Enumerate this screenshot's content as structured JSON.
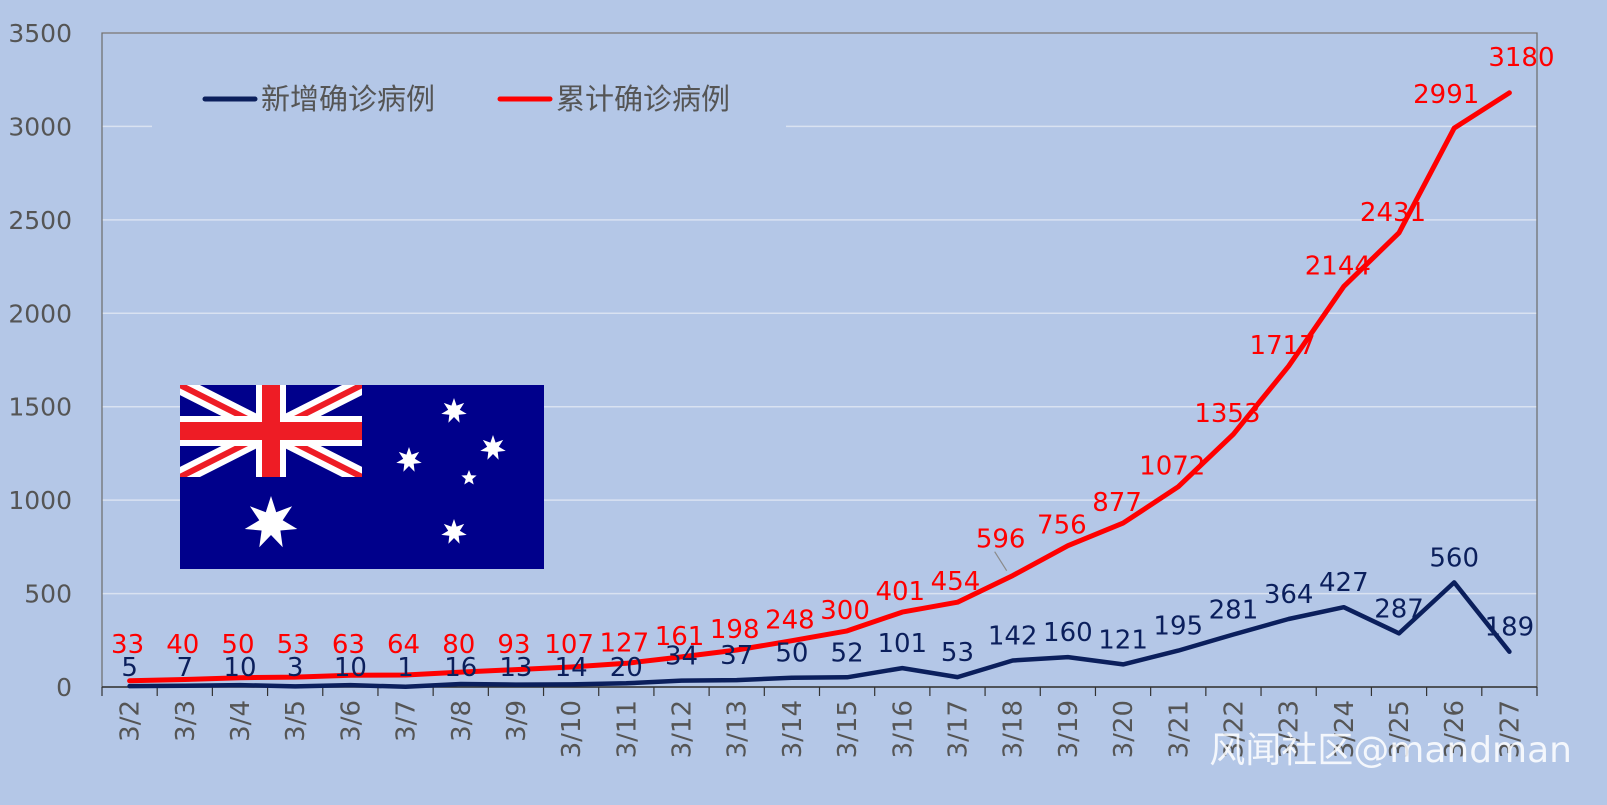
{
  "colors": {
    "background": "#b4c7e7",
    "new_series": "#0b1f5c",
    "cumulative_series": "#ff0000",
    "axis_text": "#555555",
    "grid": "#d9e2f1",
    "flag_blue": "#00008b",
    "flag_red": "#ee1c25",
    "flag_white": "#ffffff"
  },
  "watermark": "风闻社区@mandman",
  "chart_data": {
    "type": "line",
    "title": "",
    "xlabel": "",
    "ylabel": "",
    "categories": [
      "3/2",
      "3/3",
      "3/4",
      "3/5",
      "3/6",
      "3/7",
      "3/8",
      "3/9",
      "3/10",
      "3/11",
      "3/12",
      "3/13",
      "3/14",
      "3/15",
      "3/16",
      "3/17",
      "3/18",
      "3/19",
      "3/20",
      "3/21",
      "3/22",
      "3/23",
      "3/24",
      "3/25",
      "3/26",
      "3/27"
    ],
    "ylim": [
      0,
      3500
    ],
    "yticks": [
      0,
      500,
      1000,
      1500,
      2000,
      2500,
      3000,
      3500
    ],
    "grid": true,
    "legend_position": "top-left",
    "series": [
      {
        "name": "新增确诊病例",
        "color": "#0b1f5c",
        "values": [
          5,
          7,
          10,
          3,
          10,
          1,
          16,
          13,
          14,
          20,
          34,
          37,
          50,
          52,
          101,
          53,
          142,
          160,
          121,
          195,
          281,
          364,
          427,
          287,
          560,
          189
        ]
      },
      {
        "name": "累计确诊病例",
        "color": "#ff0000",
        "values": [
          33,
          40,
          50,
          53,
          63,
          64,
          80,
          93,
          107,
          127,
          161,
          198,
          248,
          300,
          401,
          454,
          596,
          756,
          877,
          1072,
          1353,
          1717,
          2144,
          2431,
          2991,
          3180
        ]
      }
    ],
    "annotation": "Australian flag inset"
  }
}
